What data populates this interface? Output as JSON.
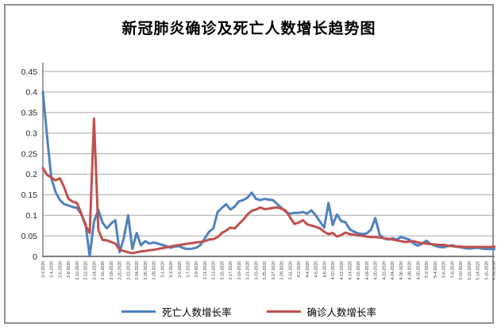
{
  "frame": {
    "border_color": "#8f8f8f",
    "background": "#ffffff"
  },
  "chart_data": {
    "type": "line",
    "title": "新冠肺炎确诊及死亡人数增长趋势图",
    "xlabel": "",
    "ylabel": "",
    "ylim": [
      0,
      0.45
    ],
    "grid": "horizontal",
    "legend_position": "bottom",
    "gridline_color": "#a6a6a6",
    "axis_color": "#808080",
    "y_tick_labels": [
      "0",
      "0.05",
      "0.1",
      "0.15",
      "0.2",
      "0.25",
      "0.3",
      "0.35",
      "0.4",
      "0.45"
    ],
    "x_tick_every_days": 2,
    "x_tick_labels": [
      "2-2-2020",
      "2-4-2020",
      "2-6-2020",
      "2-8-2020",
      "2-10-2020",
      "2-12-2020",
      "2-14-2020",
      "2-16-2020",
      "2-18-2020",
      "2-20-2020",
      "2-22-2020",
      "2-24-2020",
      "2-26-2020",
      "2-28-2020",
      "3-1-2020",
      "3-3-2020",
      "3-5-2020",
      "3-7-2020",
      "3-9-2020",
      "3-11-2020",
      "3-13-2020",
      "3-15-2020",
      "3-17-2020",
      "3-19-2020",
      "3-21-2020",
      "3-23-2020",
      "3-25-2020",
      "3-27-2020",
      "3-29-2020",
      "3-31-2020",
      "4-2-2020",
      "4-4-2020",
      "4-6-2020",
      "4-8-2020",
      "4-10-2020",
      "4-12-2020",
      "4-14-2020",
      "4-16-2020",
      "4-18-2020",
      "4-20-2020",
      "4-22-2020",
      "4-24-2020",
      "4-26-2020",
      "4-28-2020",
      "4-30-2020",
      "5-2-2020",
      "5-4-2020",
      "5-6-2020",
      "5-8-2020",
      "5-10-2020",
      "5-12-2020",
      "5-14-2020",
      "5-16-2020",
      "5-18-2020"
    ],
    "x_start_date": "2-2-2020",
    "x_end_date": "5-18-2020",
    "x_data_interval_days": 1,
    "series": [
      {
        "name": "死亡人数增长率",
        "color": "#4F81BD",
        "values": [
          0.4,
          0.29,
          0.19,
          0.156,
          0.137,
          0.127,
          0.124,
          0.12,
          0.118,
          0.103,
          0.079,
          0.0,
          0.085,
          0.113,
          0.082,
          0.068,
          0.08,
          0.088,
          0.01,
          0.045,
          0.1,
          0.018,
          0.057,
          0.027,
          0.037,
          0.031,
          0.034,
          0.031,
          0.028,
          0.025,
          0.021,
          0.024,
          0.025,
          0.02,
          0.018,
          0.019,
          0.021,
          0.028,
          0.044,
          0.06,
          0.068,
          0.108,
          0.118,
          0.127,
          0.114,
          0.121,
          0.134,
          0.137,
          0.143,
          0.155,
          0.14,
          0.137,
          0.14,
          0.138,
          0.137,
          0.127,
          0.118,
          0.108,
          0.104,
          0.106,
          0.106,
          0.108,
          0.104,
          0.112,
          0.1,
          0.085,
          0.07,
          0.13,
          0.076,
          0.102,
          0.086,
          0.083,
          0.066,
          0.06,
          0.056,
          0.054,
          0.056,
          0.065,
          0.093,
          0.053,
          0.044,
          0.041,
          0.044,
          0.041,
          0.047,
          0.044,
          0.041,
          0.031,
          0.026,
          0.031,
          0.038,
          0.03,
          0.026,
          0.023,
          0.022,
          0.025,
          0.027,
          0.024,
          0.022,
          0.02,
          0.019,
          0.02,
          0.021,
          0.019,
          0.018,
          0.018,
          0.018
        ]
      },
      {
        "name": "确诊人数增长率",
        "color": "#C0504D",
        "values": [
          0.215,
          0.198,
          0.192,
          0.185,
          0.19,
          0.168,
          0.14,
          0.133,
          0.13,
          0.105,
          0.075,
          0.057,
          0.335,
          0.065,
          0.04,
          0.039,
          0.035,
          0.031,
          0.016,
          0.013,
          0.01,
          0.008,
          0.01,
          0.012,
          0.013,
          0.015,
          0.016,
          0.018,
          0.02,
          0.022,
          0.024,
          0.026,
          0.028,
          0.029,
          0.031,
          0.032,
          0.034,
          0.035,
          0.037,
          0.041,
          0.042,
          0.047,
          0.057,
          0.063,
          0.07,
          0.068,
          0.079,
          0.089,
          0.102,
          0.111,
          0.114,
          0.119,
          0.115,
          0.116,
          0.118,
          0.119,
          0.116,
          0.111,
          0.095,
          0.079,
          0.082,
          0.088,
          0.078,
          0.075,
          0.072,
          0.068,
          0.06,
          0.054,
          0.057,
          0.048,
          0.052,
          0.058,
          0.054,
          0.053,
          0.051,
          0.05,
          0.048,
          0.047,
          0.047,
          0.046,
          0.044,
          0.043,
          0.041,
          0.039,
          0.037,
          0.035,
          0.036,
          0.037,
          0.034,
          0.032,
          0.031,
          0.03,
          0.029,
          0.028,
          0.028,
          0.026,
          0.025,
          0.024,
          0.024,
          0.023,
          0.023,
          0.023,
          0.023,
          0.023,
          0.023,
          0.023,
          0.024
        ]
      }
    ]
  }
}
